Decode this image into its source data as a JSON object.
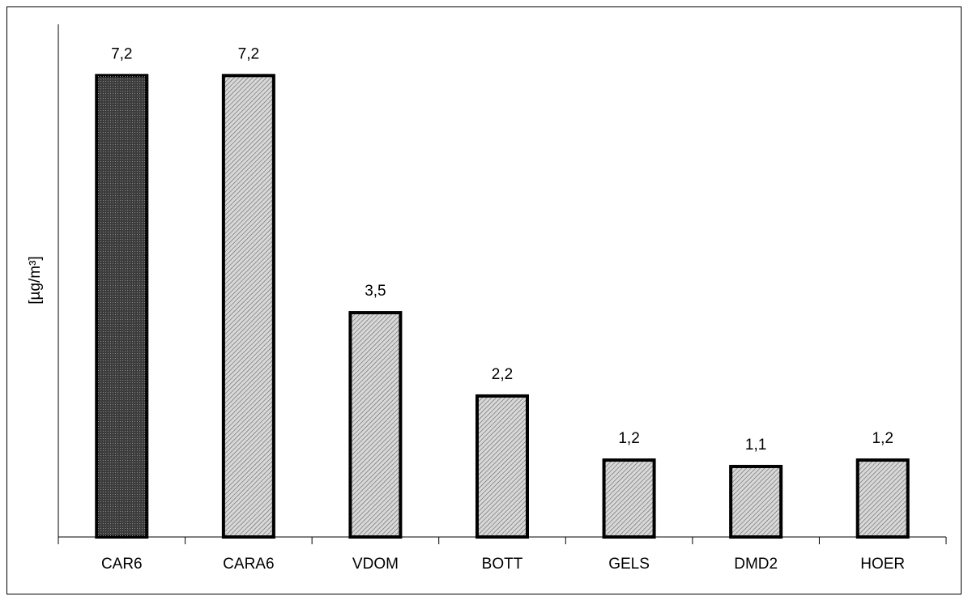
{
  "chart_data": {
    "type": "bar",
    "y_label": "[µg/m³]",
    "categories": [
      "CAR6",
      "CARA6",
      "VDOM",
      "BOTT",
      "GELS",
      "DMD2",
      "HOER"
    ],
    "values": [
      7.2,
      7.2,
      3.5,
      2.2,
      1.2,
      1.1,
      1.2
    ],
    "value_labels": [
      "7,2",
      "7,2",
      "3,5",
      "2,2",
      "1,2",
      "1,1",
      "1,2"
    ],
    "colors": [
      "#3c3c3c",
      "#d8d8d8",
      "#d8d8d8",
      "#d8d8d8",
      "#d8d8d8",
      "#d8d8d8",
      "#d8d8d8"
    ],
    "ylim": [
      0,
      8
    ]
  }
}
